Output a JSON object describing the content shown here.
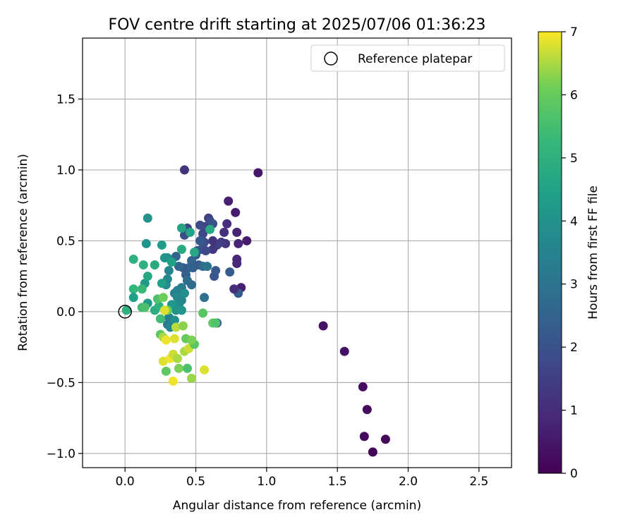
{
  "chart_data": {
    "type": "scatter",
    "title": "FOV centre drift starting at 2025/07/06 01:36:23",
    "xlabel": "Angular distance from reference (arcmin)",
    "ylabel": "Rotation from reference (arcmin)",
    "xlim": [
      -0.3,
      2.73
    ],
    "ylim": [
      -1.1,
      1.93
    ],
    "xticks": [
      "0.0",
      "0.5",
      "1.0",
      "1.5",
      "2.0",
      "2.5"
    ],
    "xtick_values": [
      0,
      0.5,
      1,
      1.5,
      2,
      2.5
    ],
    "yticks": [
      "−1.0",
      "−0.5",
      "0.0",
      "0.5",
      "1.0",
      "1.5"
    ],
    "ytick_values": [
      -1,
      -0.5,
      0,
      0.5,
      1,
      1.5
    ],
    "grid": true,
    "legend": {
      "label": "Reference platepar",
      "placement": "top-right"
    },
    "reference_point": {
      "x": 0,
      "y": 0
    },
    "colorbar": {
      "label": "Hours from first FF file",
      "min": 0,
      "max": 7,
      "ticks": [
        "0",
        "1",
        "2",
        "3",
        "4",
        "5",
        "6",
        "7"
      ],
      "tick_values": [
        0,
        1,
        2,
        3,
        4,
        5,
        6,
        7
      ],
      "colormap": "viridis"
    },
    "points": [
      {
        "x": 1.75,
        "y": -0.99,
        "c": 0.1
      },
      {
        "x": 1.84,
        "y": -0.9,
        "c": 0.15
      },
      {
        "x": 1.69,
        "y": -0.88,
        "c": 0.2
      },
      {
        "x": 1.71,
        "y": -0.69,
        "c": 0.25
      },
      {
        "x": 1.68,
        "y": -0.53,
        "c": 0.3
      },
      {
        "x": 1.55,
        "y": -0.28,
        "c": 0.35
      },
      {
        "x": 1.4,
        "y": -0.1,
        "c": 0.4
      },
      {
        "x": 0.94,
        "y": 0.98,
        "c": 0.5
      },
      {
        "x": 0.86,
        "y": 0.5,
        "c": 0.6
      },
      {
        "x": 0.82,
        "y": 0.17,
        "c": 0.7
      },
      {
        "x": 0.8,
        "y": 0.13,
        "c": 2.3
      },
      {
        "x": 0.78,
        "y": 0.7,
        "c": 0.6
      },
      {
        "x": 0.73,
        "y": 0.78,
        "c": 0.7
      },
      {
        "x": 0.79,
        "y": 0.56,
        "c": 0.8
      },
      {
        "x": 0.8,
        "y": 0.48,
        "c": 0.8
      },
      {
        "x": 0.79,
        "y": 0.37,
        "c": 0.9
      },
      {
        "x": 0.79,
        "y": 0.34,
        "c": 0.9
      },
      {
        "x": 0.77,
        "y": 0.16,
        "c": 1.0
      },
      {
        "x": 0.74,
        "y": 0.28,
        "c": 2.3
      },
      {
        "x": 0.72,
        "y": 0.62,
        "c": 1.0
      },
      {
        "x": 0.7,
        "y": 0.56,
        "c": 1.1
      },
      {
        "x": 0.71,
        "y": 0.48,
        "c": 1.2
      },
      {
        "x": 0.68,
        "y": 0.49,
        "c": 1.4
      },
      {
        "x": 0.65,
        "y": 0.47,
        "c": 1.5
      },
      {
        "x": 0.62,
        "y": 0.44,
        "c": 1.3
      },
      {
        "x": 0.62,
        "y": 0.5,
        "c": 1.2
      },
      {
        "x": 0.63,
        "y": 0.25,
        "c": 2.1
      },
      {
        "x": 0.64,
        "y": 0.29,
        "c": 2.2
      },
      {
        "x": 0.65,
        "y": -0.08,
        "c": 2.4
      },
      {
        "x": 0.42,
        "y": 1.0,
        "c": 1.2
      },
      {
        "x": 0.59,
        "y": 0.66,
        "c": 1.5
      },
      {
        "x": 0.6,
        "y": 0.64,
        "c": 1.8
      },
      {
        "x": 0.62,
        "y": 0.62,
        "c": 2.0
      },
      {
        "x": 0.56,
        "y": 0.6,
        "c": 1.6
      },
      {
        "x": 0.53,
        "y": 0.61,
        "c": 1.8
      },
      {
        "x": 0.55,
        "y": 0.55,
        "c": 1.7
      },
      {
        "x": 0.44,
        "y": 0.59,
        "c": 1.6
      },
      {
        "x": 0.42,
        "y": 0.54,
        "c": 1.9
      },
      {
        "x": 0.56,
        "y": 0.49,
        "c": 1.9
      },
      {
        "x": 0.53,
        "y": 0.5,
        "c": 2.2
      },
      {
        "x": 0.54,
        "y": 0.44,
        "c": 2.1
      },
      {
        "x": 0.57,
        "y": 0.43,
        "c": 1.8
      },
      {
        "x": 0.51,
        "y": 0.43,
        "c": 2.0
      },
      {
        "x": 0.5,
        "y": 0.4,
        "c": 2.2
      },
      {
        "x": 0.47,
        "y": 0.36,
        "c": 2.5
      },
      {
        "x": 0.45,
        "y": 0.31,
        "c": 2.6
      },
      {
        "x": 0.48,
        "y": 0.31,
        "c": 2.4
      },
      {
        "x": 0.52,
        "y": 0.33,
        "c": 2.3
      },
      {
        "x": 0.55,
        "y": 0.32,
        "c": 2.7
      },
      {
        "x": 0.58,
        "y": 0.32,
        "c": 3.0
      },
      {
        "x": 0.56,
        "y": 0.1,
        "c": 2.9
      },
      {
        "x": 0.43,
        "y": 0.26,
        "c": 2.4
      },
      {
        "x": 0.41,
        "y": 0.31,
        "c": 2.2
      },
      {
        "x": 0.38,
        "y": 0.32,
        "c": 2.6
      },
      {
        "x": 0.36,
        "y": 0.39,
        "c": 2.5
      },
      {
        "x": 0.44,
        "y": 0.22,
        "c": 2.8
      },
      {
        "x": 0.47,
        "y": 0.19,
        "c": 2.7
      },
      {
        "x": 0.4,
        "y": 0.17,
        "c": 3.2
      },
      {
        "x": 0.37,
        "y": 0.15,
        "c": 3.4
      },
      {
        "x": 0.35,
        "y": 0.13,
        "c": 3.5
      },
      {
        "x": 0.37,
        "y": 0.1,
        "c": 3.7
      },
      {
        "x": 0.4,
        "y": 0.08,
        "c": 3.6
      },
      {
        "x": 0.42,
        "y": 0.13,
        "c": 3.9
      },
      {
        "x": 0.38,
        "y": 0.05,
        "c": 3.8
      },
      {
        "x": 0.36,
        "y": 0.01,
        "c": 4.0
      },
      {
        "x": 0.4,
        "y": 0.01,
        "c": 4.1
      },
      {
        "x": 0.33,
        "y": 0.05,
        "c": 4.2
      },
      {
        "x": 0.31,
        "y": -0.04,
        "c": 3.4
      },
      {
        "x": 0.3,
        "y": -0.09,
        "c": 3.3
      },
      {
        "x": 0.32,
        "y": -0.11,
        "c": 3.6
      },
      {
        "x": 0.35,
        "y": -0.06,
        "c": 3.9
      },
      {
        "x": 0.29,
        "y": 0.19,
        "c": 3.8
      },
      {
        "x": 0.3,
        "y": 0.23,
        "c": 3.7
      },
      {
        "x": 0.26,
        "y": 0.2,
        "c": 4.4
      },
      {
        "x": 0.31,
        "y": 0.29,
        "c": 3.6
      },
      {
        "x": 0.3,
        "y": 0.38,
        "c": 3.9
      },
      {
        "x": 0.28,
        "y": 0.38,
        "c": 4.1
      },
      {
        "x": 0.26,
        "y": 0.47,
        "c": 4.3
      },
      {
        "x": 0.33,
        "y": 0.35,
        "c": 4.4
      },
      {
        "x": 0.4,
        "y": 0.44,
        "c": 4.8
      },
      {
        "x": 0.4,
        "y": 0.59,
        "c": 4.6
      },
      {
        "x": 0.46,
        "y": 0.56,
        "c": 4.5
      },
      {
        "x": 0.49,
        "y": 0.42,
        "c": 4.7
      },
      {
        "x": 0.6,
        "y": 0.58,
        "c": 4.8
      },
      {
        "x": 0.16,
        "y": 0.66,
        "c": 4.0
      },
      {
        "x": 0.15,
        "y": 0.48,
        "c": 4.1
      },
      {
        "x": 0.14,
        "y": 0.2,
        "c": 4.2
      },
      {
        "x": 0.16,
        "y": 0.06,
        "c": 4.3
      },
      {
        "x": 0.16,
        "y": 0.25,
        "c": 4.7
      },
      {
        "x": 0.21,
        "y": 0.33,
        "c": 4.8
      },
      {
        "x": 0.13,
        "y": 0.33,
        "c": 5.0
      },
      {
        "x": 0.06,
        "y": 0.37,
        "c": 5.0
      },
      {
        "x": 0.06,
        "y": 0.16,
        "c": 5.2
      },
      {
        "x": 0.06,
        "y": 0.1,
        "c": 4.4
      },
      {
        "x": 0.12,
        "y": 0.16,
        "c": 5.3
      },
      {
        "x": 0.21,
        "y": 0.01,
        "c": 4.9
      },
      {
        "x": 0.24,
        "y": 0.04,
        "c": 5.0
      },
      {
        "x": 0.23,
        "y": 0.09,
        "c": 5.6
      },
      {
        "x": 0.25,
        "y": -0.05,
        "c": 5.4
      },
      {
        "x": 0.12,
        "y": 0.03,
        "c": 5.4
      },
      {
        "x": 0.14,
        "y": 0.03,
        "c": 5.6
      },
      {
        "x": 0.01,
        "y": 0.01,
        "c": 5.0
      },
      {
        "x": 0.27,
        "y": 0.1,
        "c": 6.1
      },
      {
        "x": 0.28,
        "y": 0.01,
        "c": 6.2
      },
      {
        "x": 0.3,
        "y": 0.01,
        "c": 6.0
      },
      {
        "x": 0.28,
        "y": 0.01,
        "c": 6.8
      },
      {
        "x": 0.25,
        "y": -0.16,
        "c": 5.9
      },
      {
        "x": 0.27,
        "y": -0.18,
        "c": 6.5
      },
      {
        "x": 0.29,
        "y": -0.2,
        "c": 6.9
      },
      {
        "x": 0.35,
        "y": -0.19,
        "c": 6.8
      },
      {
        "x": 0.36,
        "y": -0.11,
        "c": 6.6
      },
      {
        "x": 0.41,
        "y": -0.1,
        "c": 6.3
      },
      {
        "x": 0.43,
        "y": -0.19,
        "c": 6.0
      },
      {
        "x": 0.42,
        "y": -0.28,
        "c": 6.5
      },
      {
        "x": 0.45,
        "y": -0.26,
        "c": 6.7
      },
      {
        "x": 0.49,
        "y": -0.23,
        "c": 5.8
      },
      {
        "x": 0.47,
        "y": -0.2,
        "c": 6.2
      },
      {
        "x": 0.55,
        "y": -0.01,
        "c": 5.8
      },
      {
        "x": 0.62,
        "y": -0.08,
        "c": 5.9
      },
      {
        "x": 0.64,
        "y": -0.08,
        "c": 5.7
      },
      {
        "x": 0.27,
        "y": -0.35,
        "c": 6.8
      },
      {
        "x": 0.32,
        "y": -0.33,
        "c": 6.9
      },
      {
        "x": 0.34,
        "y": -0.3,
        "c": 6.7
      },
      {
        "x": 0.37,
        "y": -0.33,
        "c": 6.5
      },
      {
        "x": 0.38,
        "y": -0.4,
        "c": 6.2
      },
      {
        "x": 0.29,
        "y": -0.42,
        "c": 5.9
      },
      {
        "x": 0.44,
        "y": -0.4,
        "c": 5.6
      },
      {
        "x": 0.47,
        "y": -0.47,
        "c": 6.4
      },
      {
        "x": 0.34,
        "y": -0.49,
        "c": 6.9
      },
      {
        "x": 0.56,
        "y": -0.41,
        "c": 6.8
      }
    ]
  }
}
